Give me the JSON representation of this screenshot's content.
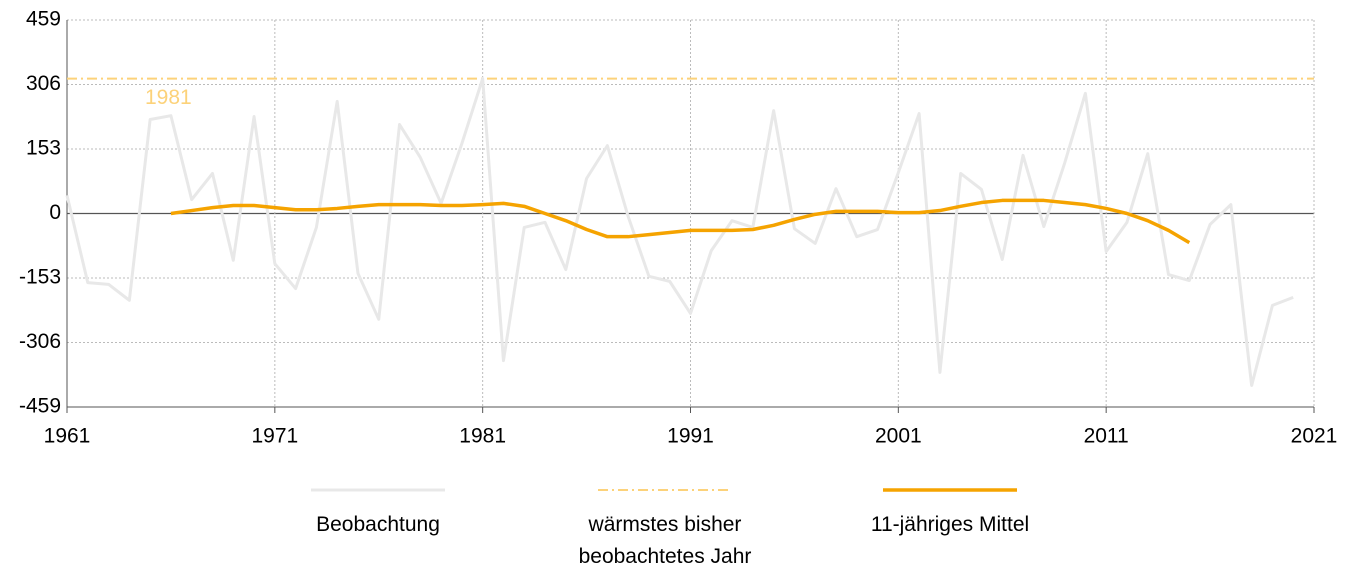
{
  "chart_data": {
    "type": "line",
    "series": [
      {
        "name": "Beobachtung",
        "color": "#e8e8e8",
        "x": [
          1961,
          1962,
          1963,
          1964,
          1965,
          1966,
          1967,
          1968,
          1969,
          1970,
          1971,
          1972,
          1973,
          1974,
          1975,
          1976,
          1977,
          1978,
          1979,
          1980,
          1981,
          1982,
          1983,
          1984,
          1985,
          1986,
          1987,
          1988,
          1989,
          1990,
          1991,
          1992,
          1993,
          1994,
          1995,
          1996,
          1997,
          1998,
          1999,
          2000,
          2001,
          2002,
          2003,
          2004,
          2005,
          2006,
          2007,
          2008,
          2009,
          2010,
          2011,
          2012,
          2013,
          2014,
          2015,
          2016,
          2017,
          2018,
          2019,
          2020
        ],
        "values": [
          43,
          -164,
          -168,
          -206,
          223,
          232,
          33,
          95,
          -111,
          230,
          -119,
          -178,
          -33,
          266,
          -142,
          -251,
          211,
          133,
          24,
          166,
          320,
          -349,
          -33,
          -21,
          -133,
          83,
          161,
          -7,
          -149,
          -161,
          -237,
          -88,
          -17,
          -33,
          244,
          -36,
          -71,
          59,
          -55,
          -38,
          97,
          237,
          -377,
          95,
          57,
          -109,
          138,
          -31,
          119,
          285,
          -90,
          -21,
          142,
          -145,
          -159,
          -26,
          21,
          -408,
          -218,
          -199
        ]
      },
      {
        "name": "11-jähriges Mittel",
        "color": "#f5a300",
        "x": [
          1966,
          1967,
          1968,
          1969,
          1970,
          1971,
          1972,
          1973,
          1974,
          1975,
          1976,
          1977,
          1978,
          1979,
          1980,
          1981,
          1982,
          1983,
          1984,
          1985,
          1986,
          1987,
          1988,
          1989,
          1990,
          1991,
          1992,
          1993,
          1994,
          1995,
          1996,
          1997,
          1998,
          1999,
          2000,
          2001,
          2002,
          2003,
          2004,
          2005,
          2006,
          2007,
          2008,
          2009,
          2010,
          2011,
          2012,
          2013,
          2014,
          2015
        ],
        "values": [
          0,
          7,
          14,
          19,
          19,
          14,
          9,
          9,
          12,
          17,
          21,
          21,
          21,
          19,
          19,
          21,
          24,
          17,
          0,
          -17,
          -38,
          -55,
          -55,
          -50,
          -45,
          -40,
          -40,
          -40,
          -38,
          -28,
          -14,
          -2,
          5,
          5,
          5,
          2,
          2,
          7,
          17,
          26,
          31,
          31,
          31,
          26,
          21,
          12,
          0,
          -17,
          -40,
          -69
        ]
      }
    ],
    "reference": {
      "name": "wärmstes bisher beobachtetes Jahr",
      "value": 320,
      "label": "1981",
      "color": "#fcd27a"
    },
    "xlim": [
      1961,
      2021
    ],
    "xticks": [
      1961,
      1971,
      1981,
      1991,
      2001,
      2011,
      2021
    ],
    "ylim": [
      -459,
      459
    ],
    "yticks": [
      459,
      306,
      153,
      0,
      -153,
      -306,
      -459
    ],
    "grid": true
  }
}
